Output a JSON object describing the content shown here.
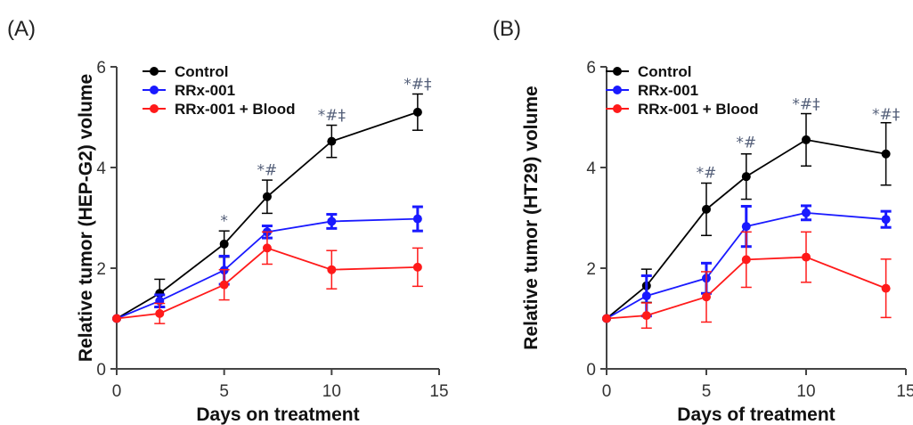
{
  "chart_data": [
    {
      "type": "line",
      "panel_label": "(A)",
      "xlabel": "Days on treatment",
      "ylabel": "Relative tumor (HEP-G2) volume",
      "xlim": [
        0,
        15
      ],
      "ylim": [
        0,
        6
      ],
      "xticks": [
        0,
        5,
        10,
        15
      ],
      "yticks": [
        0,
        2,
        4,
        6
      ],
      "x": [
        0,
        2,
        5,
        7,
        10,
        14
      ],
      "legend_position": "top-left",
      "series": [
        {
          "name": "Control",
          "color": "#000000",
          "values": [
            1.0,
            1.5,
            2.48,
            3.42,
            4.52,
            5.1
          ],
          "err": [
            0.0,
            0.28,
            0.26,
            0.33,
            0.32,
            0.36
          ]
        },
        {
          "name": "RRx-001",
          "color": "#1a1aff",
          "values": [
            1.0,
            1.35,
            1.96,
            2.72,
            2.93,
            2.98
          ],
          "err": [
            0.0,
            0.12,
            0.28,
            0.12,
            0.14,
            0.24
          ]
        },
        {
          "name": "RRx-001 + Blood",
          "color": "#ff1a1a",
          "values": [
            1.0,
            1.1,
            1.67,
            2.4,
            1.97,
            2.02
          ],
          "err": [
            0.0,
            0.2,
            0.3,
            0.32,
            0.38,
            0.38
          ]
        }
      ],
      "annotations": [
        {
          "x": 5,
          "y": 2.84,
          "text": "*"
        },
        {
          "x": 7,
          "y": 3.85,
          "text": "*#"
        },
        {
          "x": 10,
          "y": 4.94,
          "text": "*#‡"
        },
        {
          "x": 14,
          "y": 5.56,
          "text": "*#‡"
        }
      ]
    },
    {
      "type": "line",
      "panel_label": "(B)",
      "xlabel": "Days of treatment",
      "ylabel": "Relative tumor (HT29) volume",
      "xlim": [
        0,
        15
      ],
      "ylim": [
        0,
        6
      ],
      "xticks": [
        0,
        5,
        10,
        15
      ],
      "yticks": [
        0,
        2,
        4,
        6
      ],
      "x": [
        0,
        2,
        5,
        7,
        10,
        14
      ],
      "legend_position": "top-left",
      "series": [
        {
          "name": "Control",
          "color": "#000000",
          "values": [
            1.0,
            1.65,
            3.17,
            3.82,
            4.55,
            4.27
          ],
          "err": [
            0.0,
            0.33,
            0.52,
            0.45,
            0.52,
            0.62
          ]
        },
        {
          "name": "RRx-001",
          "color": "#1a1aff",
          "values": [
            1.0,
            1.45,
            1.8,
            2.83,
            3.1,
            2.97
          ],
          "err": [
            0.0,
            0.4,
            0.3,
            0.4,
            0.14,
            0.16
          ]
        },
        {
          "name": "RRx-001 + Blood",
          "color": "#ff1a1a",
          "values": [
            1.0,
            1.06,
            1.43,
            2.17,
            2.22,
            1.6
          ],
          "err": [
            0.0,
            0.25,
            0.5,
            0.55,
            0.5,
            0.58
          ]
        }
      ],
      "annotations": [
        {
          "x": 5,
          "y": 3.8,
          "text": "*#"
        },
        {
          "x": 7,
          "y": 4.4,
          "text": "*#"
        },
        {
          "x": 10,
          "y": 5.16,
          "text": "*#‡"
        },
        {
          "x": 14,
          "y": 4.96,
          "text": "*#‡"
        }
      ]
    }
  ]
}
